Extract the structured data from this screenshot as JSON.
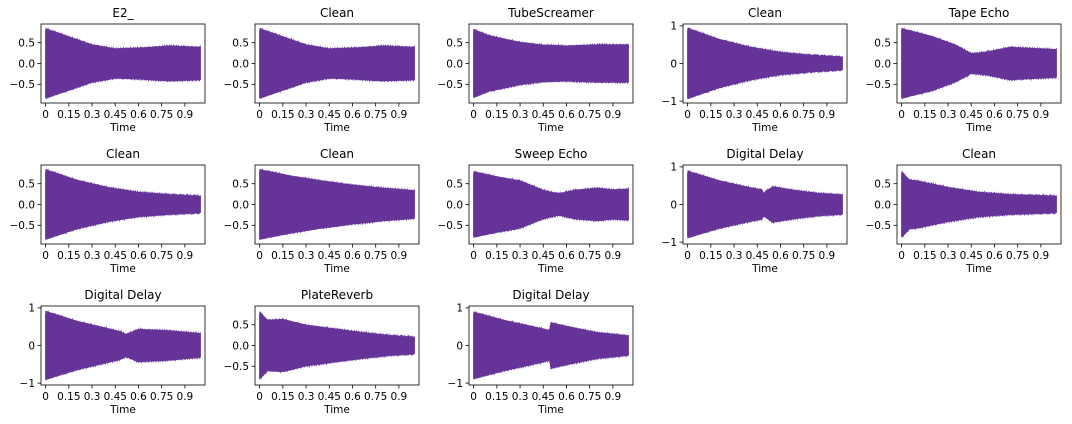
{
  "chart_data": [
    {
      "type": "line",
      "title": "E2_",
      "xlabel": "Time",
      "xlim": [
        -0.03,
        1.03
      ],
      "ylim": [
        -0.95,
        0.95
      ],
      "xticks": [
        "0",
        "0.15",
        "0.3",
        "0.45",
        "0.6",
        "0.75",
        "0.9"
      ],
      "yticks": [
        0.5,
        0.0,
        -0.5
      ],
      "ytick_labels": [
        "0.5",
        "0.0",
        "−0.5"
      ],
      "series": [
        {
          "envelope": [
            [
              0,
              0.85
            ],
            [
              0.1,
              0.72
            ],
            [
              0.3,
              0.46
            ],
            [
              0.45,
              0.36
            ],
            [
              0.6,
              0.38
            ],
            [
              0.8,
              0.43
            ],
            [
              1.0,
              0.4
            ]
          ]
        }
      ]
    },
    {
      "type": "line",
      "title": "Clean",
      "xlabel": "Time",
      "xlim": [
        -0.03,
        1.03
      ],
      "ylim": [
        -0.95,
        0.95
      ],
      "xticks": [
        "0",
        "0.15",
        "0.3",
        "0.45",
        "0.6",
        "0.75",
        "0.9"
      ],
      "yticks": [
        0.5,
        0.0,
        -0.5
      ],
      "ytick_labels": [
        "0.5",
        "0.0",
        "−0.5"
      ],
      "series": [
        {
          "envelope": [
            [
              0,
              0.85
            ],
            [
              0.1,
              0.72
            ],
            [
              0.3,
              0.46
            ],
            [
              0.45,
              0.36
            ],
            [
              0.6,
              0.38
            ],
            [
              0.8,
              0.43
            ],
            [
              1.0,
              0.4
            ]
          ]
        }
      ]
    },
    {
      "type": "line",
      "title": "TubeScreamer",
      "xlabel": "Time",
      "xlim": [
        -0.03,
        1.03
      ],
      "ylim": [
        -0.95,
        0.95
      ],
      "xticks": [
        "0",
        "0.15",
        "0.3",
        "0.45",
        "0.6",
        "0.75",
        "0.9"
      ],
      "yticks": [
        0.5,
        0.0,
        -0.5
      ],
      "ytick_labels": [
        "0.5",
        "0.0",
        "−0.5"
      ],
      "series": [
        {
          "envelope": [
            [
              0,
              0.83
            ],
            [
              0.1,
              0.68
            ],
            [
              0.3,
              0.52
            ],
            [
              0.45,
              0.45
            ],
            [
              0.6,
              0.43
            ],
            [
              0.8,
              0.46
            ],
            [
              1.0,
              0.46
            ]
          ]
        }
      ]
    },
    {
      "type": "line",
      "title": "Clean",
      "xlabel": "Time",
      "xlim": [
        -0.03,
        1.03
      ],
      "ylim": [
        -1.05,
        1.05
      ],
      "xticks": [
        "0",
        "0.15",
        "0.3",
        "0.45",
        "0.6",
        "0.75",
        "0.9"
      ],
      "yticks": [
        1,
        0,
        -1
      ],
      "ytick_labels": [
        "1",
        "0",
        "−1"
      ],
      "series": [
        {
          "envelope": [
            [
              0,
              0.95
            ],
            [
              0.2,
              0.66
            ],
            [
              0.4,
              0.45
            ],
            [
              0.6,
              0.3
            ],
            [
              0.8,
              0.22
            ],
            [
              1.0,
              0.17
            ]
          ]
        }
      ]
    },
    {
      "type": "line",
      "title": "Tape Echo",
      "xlabel": "Time",
      "xlim": [
        -0.03,
        1.03
      ],
      "ylim": [
        -0.95,
        0.95
      ],
      "xticks": [
        "0",
        "0.15",
        "0.3",
        "0.45",
        "0.6",
        "0.75",
        "0.9"
      ],
      "yticks": [
        0.5,
        0.0,
        -0.5
      ],
      "ytick_labels": [
        "0.5",
        "0.0",
        "−0.5"
      ],
      "series": [
        {
          "envelope": [
            [
              0,
              0.85
            ],
            [
              0.2,
              0.66
            ],
            [
              0.35,
              0.45
            ],
            [
              0.45,
              0.24
            ],
            [
              0.55,
              0.28
            ],
            [
              0.7,
              0.4
            ],
            [
              0.8,
              0.38
            ],
            [
              1.0,
              0.34
            ]
          ]
        }
      ]
    },
    {
      "type": "line",
      "title": "Clean",
      "xlabel": "Time",
      "xlim": [
        -0.03,
        1.03
      ],
      "ylim": [
        -0.95,
        0.95
      ],
      "xticks": [
        "0",
        "0.15",
        "0.3",
        "0.45",
        "0.6",
        "0.75",
        "0.9"
      ],
      "yticks": [
        0.5,
        0.0,
        -0.5
      ],
      "ytick_labels": [
        "0.5",
        "0.0",
        "−0.5"
      ],
      "series": [
        {
          "envelope": [
            [
              0,
              0.85
            ],
            [
              0.2,
              0.6
            ],
            [
              0.4,
              0.42
            ],
            [
              0.6,
              0.3
            ],
            [
              0.8,
              0.24
            ],
            [
              1.0,
              0.2
            ]
          ]
        }
      ]
    },
    {
      "type": "line",
      "title": "Clean",
      "xlabel": "Time",
      "xlim": [
        -0.03,
        1.03
      ],
      "ylim": [
        -0.95,
        0.95
      ],
      "xticks": [
        "0",
        "0.15",
        "0.3",
        "0.45",
        "0.6",
        "0.75",
        "0.9"
      ],
      "yticks": [
        0.5,
        0.0,
        -0.5
      ],
      "ytick_labels": [
        "0.5",
        "0.0",
        "−0.5"
      ],
      "series": [
        {
          "envelope": [
            [
              0,
              0.85
            ],
            [
              0.2,
              0.7
            ],
            [
              0.4,
              0.58
            ],
            [
              0.6,
              0.48
            ],
            [
              0.8,
              0.4
            ],
            [
              1.0,
              0.34
            ]
          ]
        }
      ]
    },
    {
      "type": "line",
      "title": "Sweep Echo",
      "xlabel": "Time",
      "xlim": [
        -0.03,
        1.03
      ],
      "ylim": [
        -0.95,
        0.95
      ],
      "xticks": [
        "0",
        "0.15",
        "0.3",
        "0.45",
        "0.6",
        "0.75",
        "0.9"
      ],
      "yticks": [
        0.5,
        0.0,
        -0.5
      ],
      "ytick_labels": [
        "0.5",
        "0.0",
        "−0.5"
      ],
      "series": [
        {
          "envelope": [
            [
              0,
              0.8
            ],
            [
              0.15,
              0.68
            ],
            [
              0.3,
              0.58
            ],
            [
              0.45,
              0.35
            ],
            [
              0.55,
              0.26
            ],
            [
              0.65,
              0.35
            ],
            [
              0.8,
              0.4
            ],
            [
              0.9,
              0.36
            ],
            [
              1.0,
              0.38
            ]
          ]
        }
      ]
    },
    {
      "type": "line",
      "title": "Digital Delay",
      "xlabel": "Time",
      "xlim": [
        -0.03,
        1.03
      ],
      "ylim": [
        -1.05,
        1.05
      ],
      "xticks": [
        "0",
        "0.15",
        "0.3",
        "0.45",
        "0.6",
        "0.75",
        "0.9"
      ],
      "yticks": [
        1,
        0,
        -1
      ],
      "ytick_labels": [
        "1",
        "0",
        "−1"
      ],
      "series": [
        {
          "envelope": [
            [
              0,
              0.9
            ],
            [
              0.2,
              0.65
            ],
            [
              0.4,
              0.46
            ],
            [
              0.48,
              0.4
            ],
            [
              0.49,
              0.3
            ],
            [
              0.55,
              0.48
            ],
            [
              0.7,
              0.38
            ],
            [
              0.85,
              0.3
            ],
            [
              1.0,
              0.26
            ]
          ]
        }
      ]
    },
    {
      "type": "line",
      "title": "Clean",
      "xlabel": "Time",
      "xlim": [
        -0.03,
        1.03
      ],
      "ylim": [
        -0.95,
        0.95
      ],
      "xticks": [
        "0",
        "0.15",
        "0.3",
        "0.45",
        "0.6",
        "0.75",
        "0.9"
      ],
      "yticks": [
        0.5,
        0.0,
        -0.5
      ],
      "ytick_labels": [
        "0.5",
        "0.0",
        "−0.5"
      ],
      "series": [
        {
          "envelope": [
            [
              0,
              0.8
            ],
            [
              0.05,
              0.6
            ],
            [
              0.1,
              0.58
            ],
            [
              0.3,
              0.42
            ],
            [
              0.5,
              0.3
            ],
            [
              0.7,
              0.24
            ],
            [
              1.0,
              0.2
            ]
          ]
        }
      ]
    },
    {
      "type": "line",
      "title": "Digital Delay",
      "xlabel": "Time",
      "xlim": [
        -0.03,
        1.03
      ],
      "ylim": [
        -1.05,
        1.05
      ],
      "xticks": [
        "0",
        "0.15",
        "0.3",
        "0.45",
        "0.6",
        "0.75",
        "0.9"
      ],
      "yticks": [
        1,
        0,
        -1
      ],
      "ytick_labels": [
        "1",
        "0",
        "−1"
      ],
      "series": [
        {
          "envelope": [
            [
              0,
              0.92
            ],
            [
              0.2,
              0.66
            ],
            [
              0.4,
              0.46
            ],
            [
              0.48,
              0.38
            ],
            [
              0.52,
              0.3
            ],
            [
              0.6,
              0.44
            ],
            [
              0.8,
              0.4
            ],
            [
              1.0,
              0.32
            ]
          ]
        }
      ]
    },
    {
      "type": "line",
      "title": "PlateReverb",
      "xlabel": "Time",
      "xlim": [
        -0.03,
        1.03
      ],
      "ylim": [
        -0.95,
        0.95
      ],
      "xticks": [
        "0",
        "0.15",
        "0.3",
        "0.45",
        "0.6",
        "0.75",
        "0.9"
      ],
      "yticks": [
        0.5,
        0.0,
        -0.5
      ],
      "ytick_labels": [
        "0.5",
        "0.0",
        "−0.5"
      ],
      "series": [
        {
          "envelope": [
            [
              0,
              0.82
            ],
            [
              0.05,
              0.62
            ],
            [
              0.15,
              0.64
            ],
            [
              0.3,
              0.5
            ],
            [
              0.5,
              0.4
            ],
            [
              0.7,
              0.3
            ],
            [
              0.85,
              0.24
            ],
            [
              1.0,
              0.2
            ]
          ]
        }
      ]
    },
    {
      "type": "line",
      "title": "Digital Delay",
      "xlabel": "Time",
      "xlim": [
        -0.03,
        1.03
      ],
      "ylim": [
        -1.05,
        1.05
      ],
      "xticks": [
        "0",
        "0.15",
        "0.3",
        "0.45",
        "0.6",
        "0.75",
        "0.9"
      ],
      "yticks": [
        1,
        0,
        -1
      ],
      "ytick_labels": [
        "1",
        "0",
        "−1"
      ],
      "series": [
        {
          "envelope": [
            [
              0,
              0.9
            ],
            [
              0.2,
              0.68
            ],
            [
              0.45,
              0.45
            ],
            [
              0.49,
              0.4
            ],
            [
              0.5,
              0.62
            ],
            [
              0.6,
              0.52
            ],
            [
              0.8,
              0.35
            ],
            [
              1.0,
              0.26
            ]
          ]
        }
      ]
    }
  ],
  "colors": {
    "waveform": "#663399",
    "axes": "#000000",
    "background": "#ffffff"
  }
}
